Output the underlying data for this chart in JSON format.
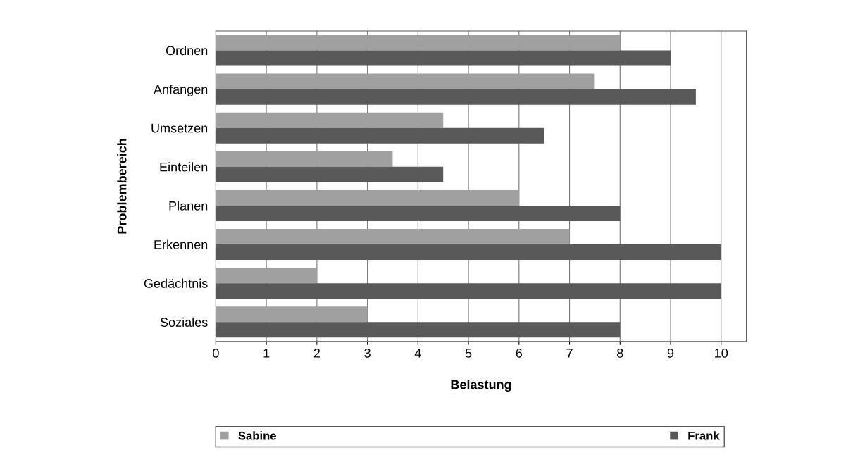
{
  "chart_data": {
    "type": "bar",
    "orientation": "horizontal",
    "xlabel": "Belastung",
    "ylabel": "Problembereich",
    "categories": [
      "Ordnen",
      "Anfangen",
      "Umsetzen",
      "Einteilen",
      "Planen",
      "Erkennen",
      "Gedächtnis",
      "Soziales"
    ],
    "series": [
      {
        "name": "Sabine",
        "color": "#a0a0a0",
        "values": [
          8,
          7.5,
          4.5,
          3.5,
          6,
          7,
          2,
          3
        ]
      },
      {
        "name": "Frank",
        "color": "#595959",
        "values": [
          9,
          9.5,
          6.5,
          4.5,
          8,
          10,
          10,
          8
        ]
      }
    ],
    "xlim": [
      0,
      10.5
    ],
    "xticks": [
      0,
      1,
      2,
      3,
      4,
      5,
      6,
      7,
      8,
      9,
      10
    ],
    "grid": "x",
    "legend": "bottom"
  }
}
